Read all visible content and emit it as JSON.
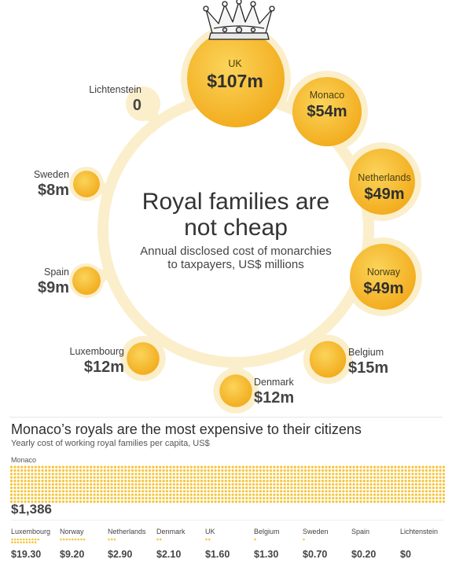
{
  "chart_data": [
    {
      "type": "bubble",
      "title": "Royal families are not cheap",
      "subtitle": "Annual disclosed cost of monarchies to taxpayers, US$ millions",
      "categories": [
        "UK",
        "Monaco",
        "Netherlands",
        "Norway",
        "Belgium",
        "Denmark",
        "Luxembourg",
        "Spain",
        "Sweden",
        "Lichtenstein"
      ],
      "values": [
        107,
        54,
        49,
        49,
        15,
        12,
        12,
        9,
        8,
        0
      ],
      "value_labels": [
        "$107m",
        "$54m",
        "$49m",
        "$49m",
        "$15m",
        "$12m",
        "$12m",
        "$9m",
        "$8m",
        "0"
      ],
      "decoration": "crown-icon"
    },
    {
      "type": "dot-matrix",
      "title": "Monaco’s royals are the most expensive to their citizens",
      "subtitle": "Yearly cost of working royal families per capita, US$",
      "categories": [
        "Monaco",
        "Luxembourg",
        "Norway",
        "Netherlands",
        "Denmark",
        "UK",
        "Belgium",
        "Sweden",
        "Spain",
        "Lichtenstein"
      ],
      "values": [
        1386,
        19.3,
        9.2,
        2.9,
        2.1,
        1.6,
        1.3,
        0.7,
        0.2,
        0
      ],
      "value_labels": [
        "$1,386",
        "$19.30",
        "$9.20",
        "$2.90",
        "$2.10",
        "$1.60",
        "$1.30",
        "$0.70",
        "$0.20",
        "$0"
      ]
    }
  ],
  "colors": {
    "bubble": "#f4b21f",
    "bubble_light": "#f9d873",
    "halo": "#fbeecb",
    "dot": "#f6c53c"
  }
}
